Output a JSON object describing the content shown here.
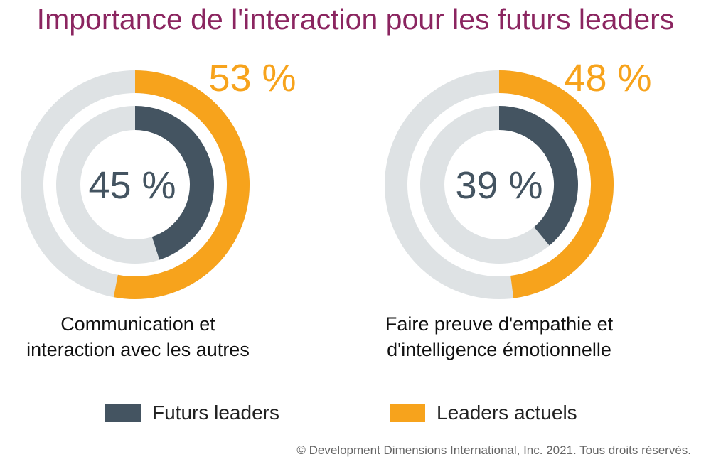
{
  "title": "Importance de l'interaction pour les futurs leaders",
  "copyright": "© Development Dimensions International, Inc. 2021. Tous droits réservés.",
  "colors": {
    "title": "#8b2560",
    "futurs": "#445461",
    "actuels": "#f7a31c",
    "track": "#dee2e4"
  },
  "chart_data": {
    "type": "donut",
    "title": "Importance de l'interaction pour les futurs leaders",
    "unit": "%",
    "series_names": [
      "Futurs leaders",
      "Leaders actuels"
    ],
    "categories": [
      {
        "label_line1": "Communication et",
        "label_line2": "interaction avec les autres",
        "futurs": 45,
        "actuels": 53,
        "futurs_text": "45 %",
        "actuels_text": "53 %"
      },
      {
        "label_line1": "Faire preuve d'empathie et",
        "label_line2": "d'intelligence émotionnelle",
        "futurs": 39,
        "actuels": 48,
        "futurs_text": "39 %",
        "actuels_text": "48 %"
      }
    ]
  },
  "legend": [
    {
      "label": "Futurs leaders",
      "series": "futurs"
    },
    {
      "label": "Leaders actuels",
      "series": "actuels"
    }
  ]
}
